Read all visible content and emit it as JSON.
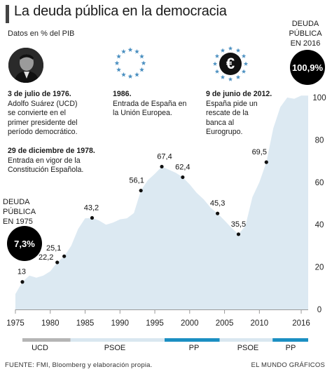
{
  "header": {
    "title": "La deuda pública en la democracia",
    "subtitle": "Datos en % del PIB"
  },
  "badges": {
    "debt_1975": {
      "label_line1": "DEUDA",
      "label_line2": "PÚBLICA",
      "label_line3": "EN 1975",
      "value": "7,3%"
    },
    "debt_2016": {
      "label_line1": "DEUDA",
      "label_line2": "PÚBLICA",
      "label_line3": "EN 2016",
      "value": "100,9%"
    }
  },
  "annotations": {
    "n1976": {
      "date": "3 de julio de 1976.",
      "line1": "Adolfo Suárez (UCD)",
      "line2": "se convierte en el",
      "line3": "primer presidente del",
      "line4": "período democrático."
    },
    "n1978": {
      "date": "29 de diciembre de 1978.",
      "line1": "Entrada en vigor de la",
      "line2": "Constitución Española."
    },
    "n1986": {
      "date": "1986.",
      "line1": "Entrada de España en",
      "line2": "la Unión Europea."
    },
    "n2012": {
      "date": "9 de junio de 2012.",
      "line1": "España pide un",
      "line2": "rescate de la",
      "line3": "banca al",
      "line4": "Eurogrupo."
    }
  },
  "icons": {
    "portrait": "portrait-photo",
    "eu": "eu-stars-icon",
    "euro": "euro-icon"
  },
  "colors": {
    "area": "#dce9f2",
    "ucd": "#b5b5b5",
    "psoe": "#d9e7f0",
    "pp": "#1b8fc2",
    "axis": "#9a9a9a"
  },
  "parties": [
    {
      "name": "UCD",
      "from": 1976,
      "to": 1982.9,
      "color": "#b5b5b5"
    },
    {
      "name": "PSOE",
      "from": 1982.9,
      "to": 1996.4,
      "color": "#d9e7f0"
    },
    {
      "name": "PP",
      "from": 1996.4,
      "to": 2004.3,
      "color": "#1b8fc2"
    },
    {
      "name": "PSOE",
      "from": 2004.3,
      "to": 2011.9,
      "color": "#d9e7f0"
    },
    {
      "name": "PP",
      "from": 2011.9,
      "to": 2017,
      "color": "#1b8fc2"
    }
  ],
  "footer": {
    "source": "FUENTE:  FMI, Bloomberg y elaboración propia.",
    "brand": "EL MUNDO GRÁFICOS"
  },
  "chart_data": {
    "type": "area",
    "title": "La deuda pública en la democracia",
    "ylabel": "Datos en % del PIB",
    "xlim": [
      1975,
      2017
    ],
    "ylim": [
      0,
      100
    ],
    "xticks": [
      1975,
      1980,
      1985,
      1990,
      1995,
      2000,
      2005,
      2010,
      2016
    ],
    "yticks": [
      0,
      20,
      40,
      60,
      80,
      100
    ],
    "grid": false,
    "x": [
      1975,
      1976,
      1977,
      1978,
      1979,
      1980,
      1981,
      1982,
      1983,
      1984,
      1985,
      1986,
      1987,
      1988,
      1989,
      1990,
      1991,
      1992,
      1993,
      1994,
      1995,
      1996,
      1997,
      1998,
      1999,
      2000,
      2001,
      2002,
      2003,
      2004,
      2005,
      2006,
      2007,
      2008,
      2009,
      2010,
      2011,
      2012,
      2013,
      2014,
      2015,
      2016
    ],
    "values": [
      7.3,
      13,
      16,
      15,
      16,
      18,
      22.2,
      25.1,
      30,
      38,
      43,
      43.2,
      42,
      40,
      41,
      42.5,
      43,
      45.5,
      56.1,
      61,
      64,
      67.4,
      66,
      64.5,
      62.4,
      59,
      55,
      52,
      48,
      45.3,
      42,
      38.5,
      35.5,
      39.5,
      53,
      60,
      69.5,
      85.5,
      95.5,
      100,
      99.4,
      100.9
    ],
    "labeled_points": [
      {
        "x": 1976,
        "y": 13,
        "label": "13"
      },
      {
        "x": 1981,
        "y": 22.2,
        "label": "22,2"
      },
      {
        "x": 1982,
        "y": 25.1,
        "label": "25,1"
      },
      {
        "x": 1986,
        "y": 43.2,
        "label": "43,2"
      },
      {
        "x": 1993,
        "y": 56.1,
        "label": "56,1"
      },
      {
        "x": 1996,
        "y": 67.4,
        "label": "67,4"
      },
      {
        "x": 1999,
        "y": 62.4,
        "label": "62,4"
      },
      {
        "x": 2004,
        "y": 45.3,
        "label": "45,3"
      },
      {
        "x": 2007,
        "y": 35.5,
        "label": "35,5"
      },
      {
        "x": 2011,
        "y": 69.5,
        "label": "69,5"
      }
    ]
  }
}
